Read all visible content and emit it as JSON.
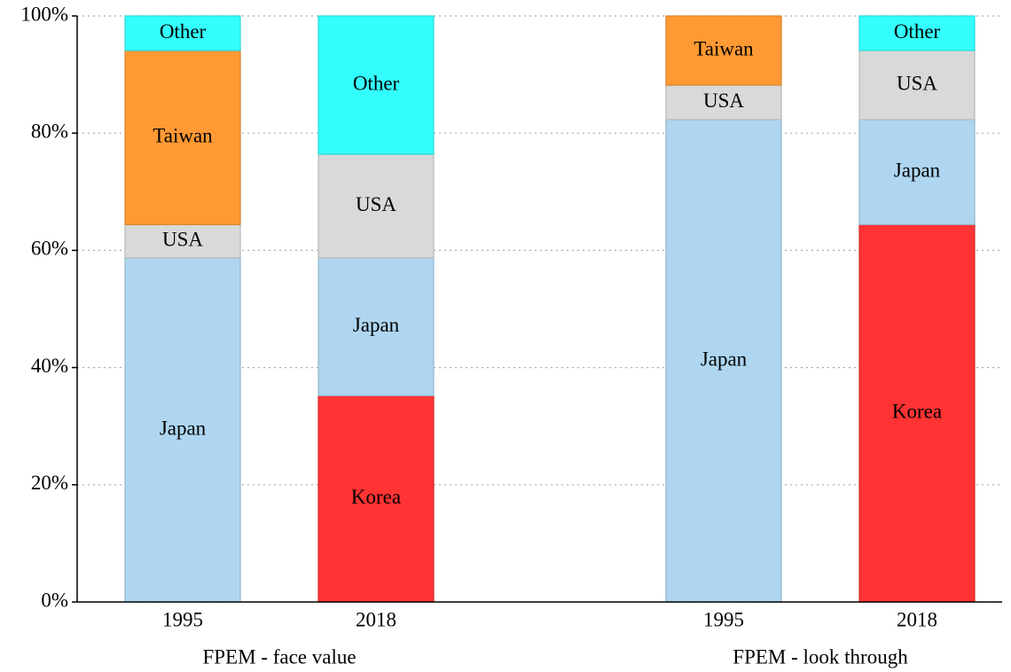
{
  "chart_data": {
    "type": "stacked_bar",
    "groups": [
      {
        "label": "FPEM - face value",
        "categories": [
          "1995",
          "2018"
        ]
      },
      {
        "label": "FPEM - look through",
        "categories": [
          "1995",
          "2018"
        ]
      }
    ],
    "series": [
      {
        "name": "Korea",
        "color": "#ff3333",
        "values": [
          0,
          35.2,
          0,
          64.4
        ]
      },
      {
        "name": "Japan",
        "color": "#aed6f0",
        "values": [
          58.7,
          23.5,
          82.3,
          17.9
        ]
      },
      {
        "name": "USA",
        "color": "#d9d9d9",
        "values": [
          5.7,
          17.7,
          5.9,
          11.8
        ]
      },
      {
        "name": "Taiwan",
        "color": "#ff9933",
        "values": [
          29.7,
          0,
          11.8,
          0
        ]
      },
      {
        "name": "Other",
        "color": "#33ffff",
        "values": [
          5.9,
          23.6,
          0,
          5.9
        ]
      }
    ],
    "ylim": [
      0,
      100
    ],
    "yticks": [
      {
        "value": 0,
        "label": "0%"
      },
      {
        "value": 20,
        "label": "20%"
      },
      {
        "value": 40,
        "label": "40%"
      },
      {
        "value": 60,
        "label": "60%"
      },
      {
        "value": 80,
        "label": "80%"
      },
      {
        "value": 100,
        "label": "100%"
      }
    ],
    "grid": true
  }
}
